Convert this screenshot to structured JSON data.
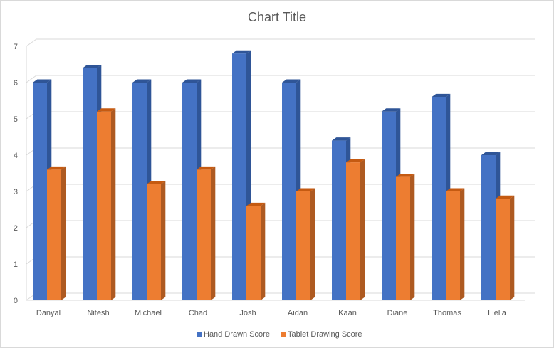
{
  "chart_data": {
    "type": "bar",
    "title": "Chart Title",
    "categories": [
      "Danyal",
      "Nitesh",
      "Michael",
      "Chad",
      "Josh",
      "Aidan",
      "Kaan",
      "Diane",
      "Thomas",
      "Liella"
    ],
    "series": [
      {
        "name": "Hand Drawn Score",
        "color": "#4472c4",
        "side_color": "#2f5597",
        "top_color": "#2f5597",
        "values": [
          6,
          6.4,
          6,
          6,
          6.8,
          6,
          4.4,
          5.2,
          5.6,
          4
        ]
      },
      {
        "name": "Tablet Drawing Score",
        "color": "#ed7d31",
        "side_color": "#ae5a21",
        "top_color": "#c55a11",
        "values": [
          3.6,
          5.2,
          3.2,
          3.6,
          2.6,
          3,
          3.8,
          3.4,
          3,
          2.8
        ]
      }
    ],
    "ylim": [
      0,
      7
    ],
    "yticks": [
      "0",
      "1",
      "2",
      "3",
      "4",
      "5",
      "6",
      "7"
    ],
    "grid": true,
    "legend_position": "bottom",
    "style": "3d-clustered-column"
  }
}
